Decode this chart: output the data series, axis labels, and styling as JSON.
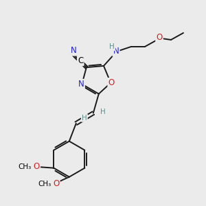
{
  "bg_color": "#ebebeb",
  "atom_colors": {
    "C": "#000000",
    "N": "#2020cc",
    "O": "#cc2020",
    "H": "#5a9090"
  },
  "bond_color": "#1a1a1a",
  "figsize": [
    3.0,
    3.0
  ],
  "dpi": 100
}
